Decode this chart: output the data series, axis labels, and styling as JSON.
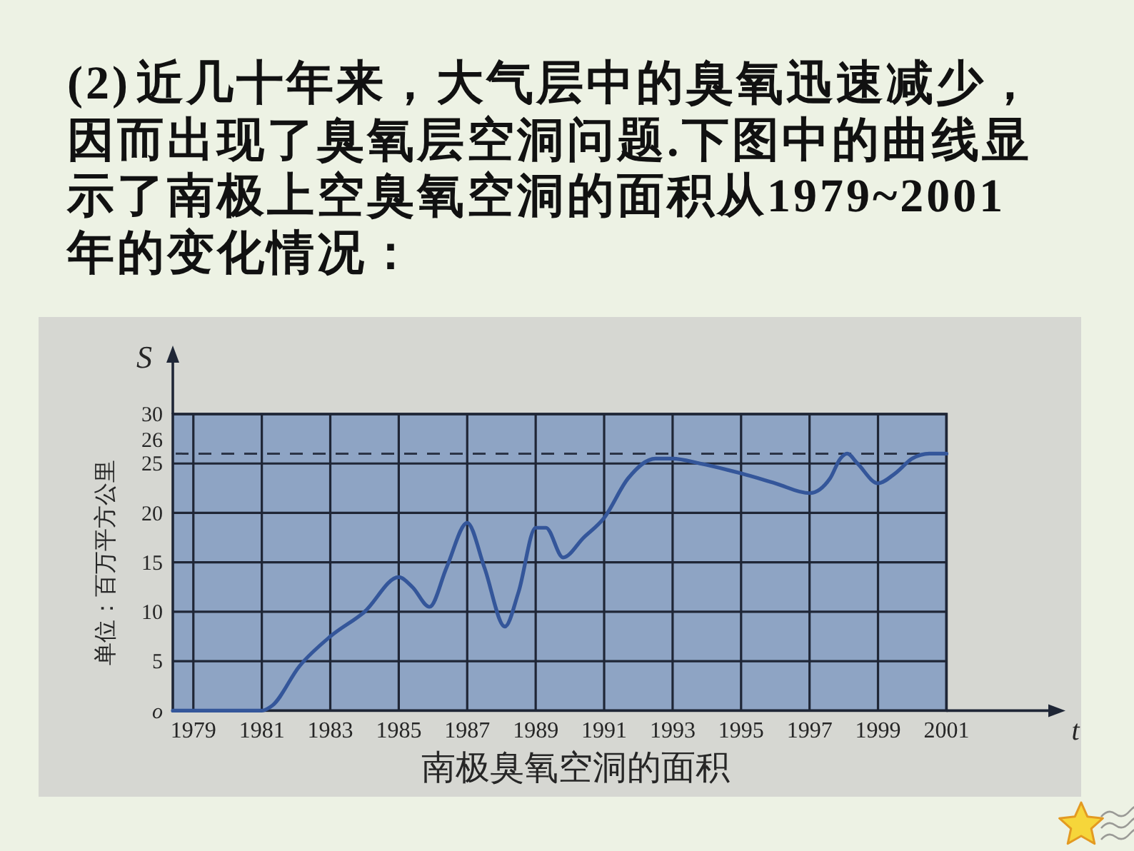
{
  "chart_data": {
    "type": "line",
    "title": "(2) 近几十年来，大气层中的臭氧迅速减少，因而出现了臭氧层空洞问题.下图中的曲线显示了南极上空臭氧空洞的面积从1979~2001年的变化情况：",
    "xlabel": "t",
    "ylabel": "S",
    "annotations": [
      "单位：百万平方公里",
      "南极臭氧空洞的面积"
    ],
    "x": [
      1978.4,
      1979,
      1980,
      1981,
      1981.3,
      1982.1,
      1983,
      1984,
      1985,
      1985.4,
      1985.9,
      1986.4,
      1987,
      1987.5,
      1988.1,
      1988.5,
      1989,
      1989.3,
      1989.8,
      1990.4,
      1991,
      1991.7,
      1992.5,
      1993,
      1993.8,
      1995,
      1996,
      1997,
      1997.6,
      1997.9,
      1998.1,
      1998.4,
      1999,
      1999.5,
      2000,
      2000.5,
      2001
    ],
    "series": [
      {
        "color": "#34569a",
        "values": [
          0,
          0,
          0,
          0,
          0.5,
          4.5,
          7.5,
          10,
          13.5,
          12.5,
          10.5,
          14.5,
          19,
          14.5,
          8.5,
          12,
          18.5,
          18.5,
          15.5,
          17.5,
          19.5,
          23.5,
          25.5,
          25.5,
          25,
          24,
          23,
          22,
          23.5,
          25.5,
          26,
          25,
          23,
          24,
          25.5,
          26,
          26
        ]
      }
    ],
    "xlim": [
      1978.4,
      2001
    ],
    "ylim": [
      0,
      30
    ],
    "xticks": [
      1979,
      1981,
      1983,
      1985,
      1987,
      1989,
      1991,
      1993,
      1995,
      1997,
      1999,
      2001
    ],
    "yticks": [
      {
        "value": 0,
        "label": "o"
      },
      5,
      10,
      15,
      20,
      25,
      30
    ],
    "ref_lines": [
      {
        "axis": "y",
        "value": 26,
        "label": "26",
        "color": "#2b3447",
        "line_style": "dashed"
      }
    ],
    "grid": true,
    "line_style": "solid"
  }
}
